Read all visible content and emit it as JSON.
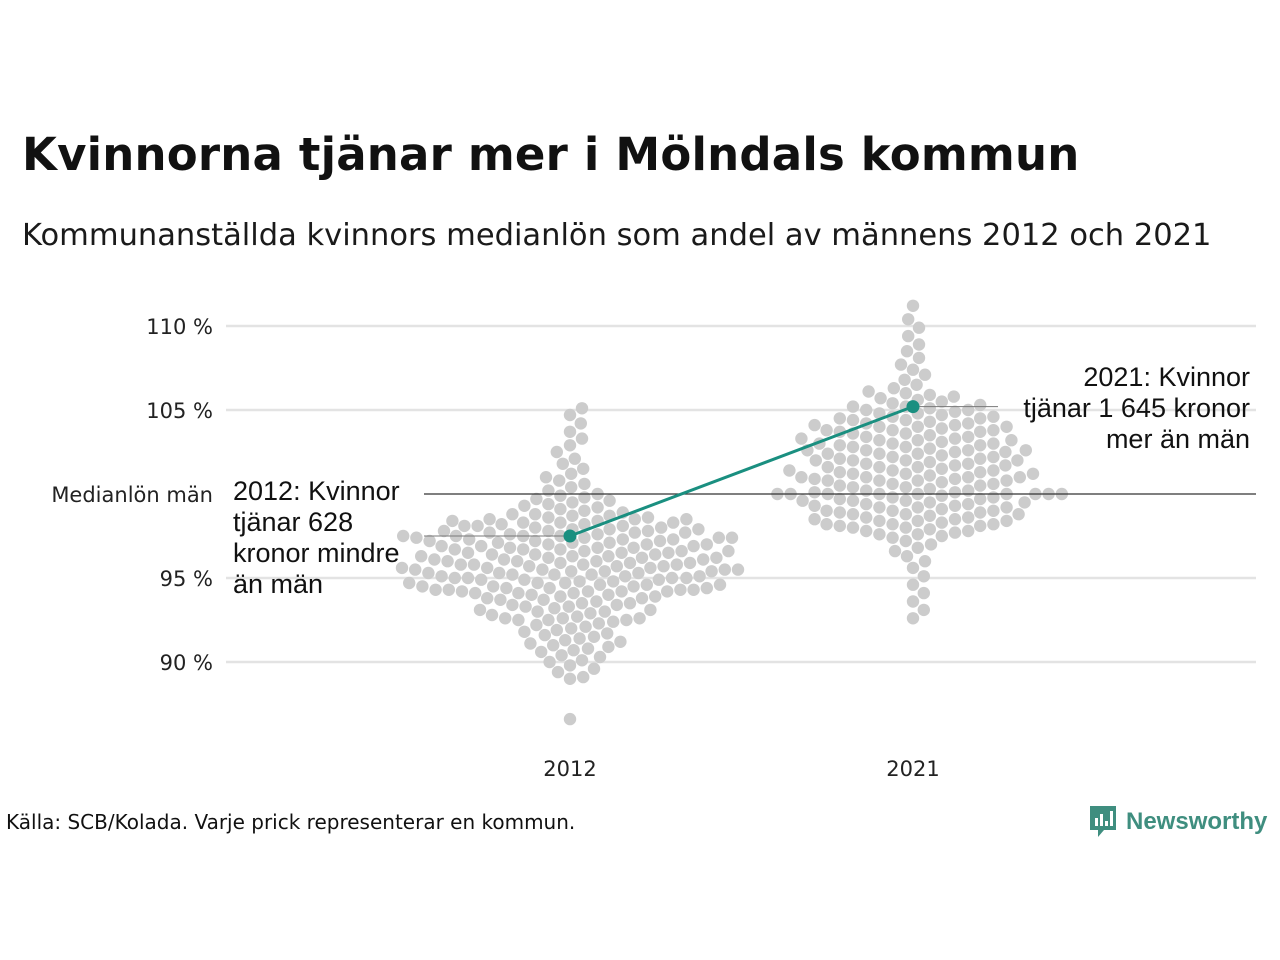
{
  "title": "Kvinnorna tjänar mer i Mölndals kommun",
  "subtitle": "Kommunanställda kvinnors medianlön som andel av männens 2012 och 2021",
  "source": "Källa: SCB/Kolada. Varje prick representerar en kommun.",
  "brand": {
    "name": "Newsworthy",
    "logo_icon": "bar-chart-speech-bubble-icon",
    "color": "#3f8e7f"
  },
  "chart_data": {
    "type": "scatter",
    "subtype": "beeswarm",
    "categories": [
      "2012",
      "2021"
    ],
    "y_ticks": [
      {
        "value": 90,
        "label": "90 %"
      },
      {
        "value": 95,
        "label": "95 %"
      },
      {
        "value": 100,
        "label": "Medianlön män"
      },
      {
        "value": 105,
        "label": "105 %"
      },
      {
        "value": 110,
        "label": "110 %"
      }
    ],
    "ylim": [
      86,
      111.5
    ],
    "grid": true,
    "reference_line": {
      "value": 100,
      "label": "Medianlön män"
    },
    "colors": {
      "background_dots": "#cccccc",
      "highlight": "#1a8f80",
      "grid": "#e3e3e3",
      "reference": "#333333"
    },
    "background_series": [
      {
        "category": "2012",
        "note": "one dot per municipality",
        "values": [
          86.6,
          89.0,
          89.1,
          89.4,
          89.6,
          89.8,
          90.0,
          90.1,
          90.3,
          90.4,
          90.6,
          90.7,
          90.8,
          90.9,
          91.0,
          91.1,
          91.2,
          91.3,
          91.4,
          91.5,
          91.6,
          91.7,
          91.8,
          91.9,
          92.0,
          92.1,
          92.2,
          92.3,
          92.4,
          92.5,
          92.5,
          92.6,
          92.7,
          92.8,
          92.9,
          93.0,
          93.1,
          93.2,
          93.3,
          93.4,
          93.5,
          93.6,
          93.7,
          93.8,
          93.9,
          94.0,
          94.1,
          94.2,
          94.3,
          94.4,
          94.5,
          94.6,
          94.7,
          94.8,
          94.9,
          95.0,
          95.1,
          95.2,
          95.3,
          95.4,
          95.5,
          95.6,
          95.7,
          95.8,
          95.9,
          96.0,
          96.1,
          96.2,
          96.3,
          96.4,
          96.5,
          96.6,
          96.7,
          96.8,
          96.9,
          97.0,
          97.1,
          97.2,
          97.3,
          97.4,
          97.5,
          97.6,
          97.7,
          97.8,
          97.9,
          98.0,
          98.1,
          98.2,
          98.3,
          98.4,
          98.5,
          98.6,
          98.7,
          98.8,
          98.9,
          99.0,
          99.1,
          99.2,
          99.3,
          99.4,
          99.5,
          99.6,
          99.7,
          99.8,
          99.9,
          100.0,
          100.2,
          100.4,
          100.6,
          100.8,
          101.0,
          101.2,
          101.5,
          101.8,
          102.1,
          102.5,
          102.9,
          103.3,
          103.7,
          104.2,
          104.7,
          105.1,
          94.1,
          94.2,
          94.3,
          94.4,
          94.5,
          94.6,
          94.7,
          94.8,
          94.9,
          95.0,
          95.1,
          95.2,
          95.3,
          95.4,
          95.5,
          95.6,
          95.7,
          95.8,
          95.9,
          96.0,
          96.1,
          96.2,
          96.3,
          96.4,
          96.5,
          96.6,
          96.7,
          96.8,
          96.9,
          97.0,
          97.1,
          97.2,
          97.3,
          97.4,
          97.5,
          97.6,
          97.7,
          97.8,
          97.9,
          98.0,
          98.1,
          98.2,
          98.3,
          98.4,
          98.5,
          98.6,
          98.7,
          98.8,
          93.1,
          93.3,
          93.5,
          93.7,
          93.9,
          94.1,
          94.3,
          94.5,
          94.7,
          94.9,
          95.1,
          95.3,
          95.5,
          95.7,
          95.9,
          96.1,
          96.3,
          96.5,
          96.7,
          96.9,
          97.1,
          97.3,
          97.5,
          97.7,
          97.9,
          98.1,
          98.3,
          98.5,
          93.4,
          93.8,
          94.2,
          94.6,
          95.0,
          95.4,
          95.8,
          96.2,
          96.6,
          97.0,
          97.4,
          97.8,
          92.6,
          93.0,
          94.0,
          95.5,
          96.0,
          97.5,
          94.2,
          95.2,
          95.6,
          96.4,
          97.2,
          94.4,
          95.8,
          96.8,
          97.4,
          95.0,
          94.3,
          92.5,
          92.6
        ]
      },
      {
        "category": "2021",
        "note": "one dot per municipality",
        "values": [
          92.6,
          93.1,
          93.6,
          94.1,
          94.6,
          95.1,
          95.6,
          96.0,
          96.3,
          96.6,
          96.8,
          97.0,
          97.2,
          97.4,
          97.5,
          97.6,
          97.7,
          97.8,
          97.9,
          98.0,
          98.1,
          98.2,
          98.3,
          98.4,
          98.5,
          98.6,
          98.7,
          98.8,
          98.9,
          99.0,
          99.1,
          99.2,
          99.3,
          99.4,
          99.5,
          99.6,
          99.7,
          99.8,
          99.9,
          100.0,
          100.1,
          100.2,
          100.3,
          100.4,
          100.5,
          100.6,
          100.7,
          100.8,
          100.9,
          101.0,
          101.1,
          101.2,
          101.3,
          101.4,
          101.5,
          101.6,
          101.7,
          101.8,
          101.9,
          102.0,
          102.1,
          102.2,
          102.3,
          102.4,
          102.5,
          102.6,
          102.7,
          102.8,
          102.9,
          103.0,
          103.1,
          103.2,
          103.3,
          103.4,
          103.5,
          103.6,
          103.7,
          103.8,
          103.9,
          104.0,
          104.1,
          104.2,
          104.3,
          104.4,
          104.5,
          104.6,
          104.7,
          104.8,
          104.9,
          105.0,
          105.1,
          105.2,
          105.3,
          105.5,
          105.7,
          105.9,
          106.1,
          106.3,
          106.5,
          106.8,
          107.1,
          107.4,
          107.7,
          108.1,
          108.5,
          108.9,
          109.4,
          109.9,
          110.4,
          111.2,
          97.6,
          97.8,
          98.0,
          98.2,
          98.4,
          98.6,
          98.8,
          99.0,
          99.2,
          99.4,
          99.6,
          99.8,
          100.0,
          100.2,
          100.4,
          100.6,
          100.8,
          101.0,
          101.2,
          101.4,
          101.6,
          101.8,
          102.0,
          102.2,
          102.4,
          102.6,
          102.8,
          103.0,
          103.2,
          103.4,
          103.6,
          103.8,
          104.0,
          104.2,
          104.4,
          104.6,
          104.8,
          105.0,
          105.2,
          105.4,
          105.6,
          105.8,
          106.0,
          98.1,
          98.5,
          98.9,
          99.3,
          99.7,
          100.1,
          100.5,
          100.9,
          101.3,
          101.7,
          102.1,
          102.5,
          102.9,
          103.3,
          103.7,
          104.1,
          104.5,
          98.4,
          99.2,
          100.0,
          100.8,
          101.6,
          102.4,
          103.2,
          104.0,
          99.0,
          100.0,
          101.0,
          102.0,
          103.0,
          98.8,
          100.0,
          101.2,
          102.6,
          99.5,
          100.0,
          102.0,
          100.0,
          101.0,
          100.0,
          100.0,
          98.2,
          101.4,
          102.6,
          103.8,
          99.6,
          100.8
        ]
      }
    ],
    "highlight_series": {
      "values": [
        97.5,
        105.2
      ],
      "annotations": [
        {
          "category": "2012",
          "lines": [
            "2012: Kvinnor",
            "tjänar 628",
            "kronor mindre",
            "än män"
          ]
        },
        {
          "category": "2021",
          "lines": [
            "2021: Kvinnor",
            "tjänar 1 645 kronor",
            "mer än män"
          ]
        }
      ]
    }
  }
}
